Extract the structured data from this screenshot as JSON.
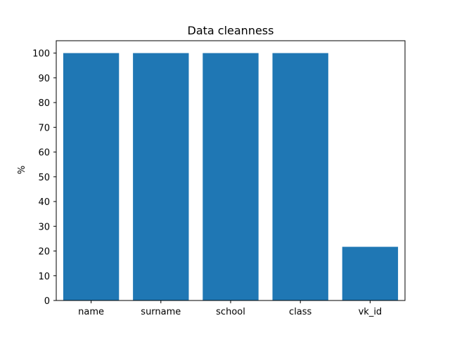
{
  "chart_data": {
    "type": "bar",
    "title": "Data cleanness",
    "xlabel": "",
    "ylabel": "%",
    "categories": [
      "name",
      "surname",
      "school",
      "class",
      "vk_id"
    ],
    "values": [
      100,
      100,
      100,
      100,
      21.7
    ],
    "ylim": [
      0,
      105
    ],
    "yticks": [
      0,
      10,
      20,
      30,
      40,
      50,
      60,
      70,
      80,
      90,
      100
    ],
    "bar_color": "#1f77b4",
    "grid": false,
    "legend": "none"
  }
}
